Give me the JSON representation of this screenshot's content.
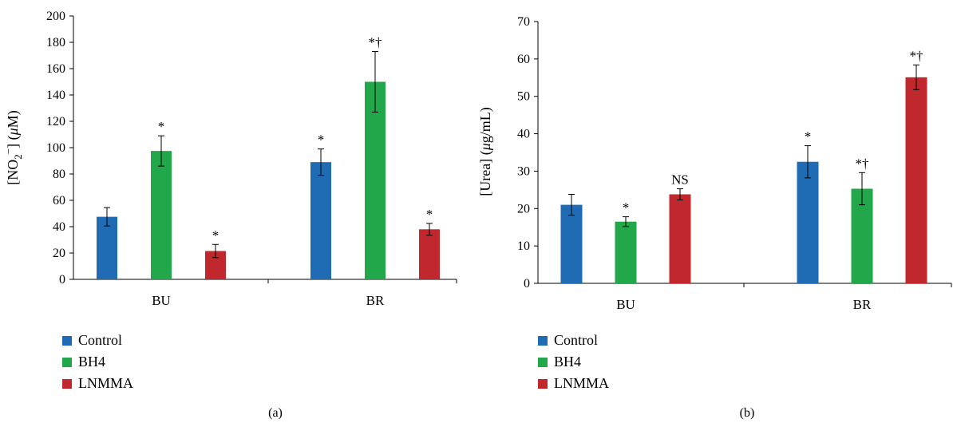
{
  "colors": {
    "Control": "#1f6cb4",
    "BH4": "#22a84a",
    "LNMMA": "#c0282d"
  },
  "chart_data": [
    {
      "panel_label": "(a)",
      "type": "bar",
      "categories": [
        "BU",
        "BR"
      ],
      "ylabel_parts": [
        "[NO",
        "2",
        "−",
        "] (",
        "μ",
        "M)"
      ],
      "ylim": [
        0,
        200
      ],
      "yticks": [
        0,
        20,
        40,
        60,
        80,
        100,
        120,
        140,
        160,
        180,
        200
      ],
      "legend": [
        "Control",
        "BH4",
        "LNMMA"
      ],
      "legend_position": "bottom-left",
      "series": [
        {
          "name": "Control",
          "values": [
            47.5,
            89
          ],
          "errors": [
            7,
            10
          ],
          "annotations": [
            "",
            "*"
          ]
        },
        {
          "name": "BH4",
          "values": [
            97.5,
            150
          ],
          "errors": [
            11.5,
            23
          ],
          "annotations": [
            "*",
            "*†"
          ]
        },
        {
          "name": "LNMMA",
          "values": [
            21.5,
            38
          ],
          "errors": [
            5,
            4.5
          ],
          "annotations": [
            "*",
            "*"
          ]
        }
      ]
    },
    {
      "panel_label": "(b)",
      "type": "bar",
      "categories": [
        "BU",
        "BR"
      ],
      "ylabel_parts": [
        "[Urea] (",
        "μ",
        "g/mL)"
      ],
      "ylim": [
        0,
        70
      ],
      "yticks": [
        0,
        10,
        20,
        30,
        40,
        50,
        60,
        70
      ],
      "legend": [
        "Control",
        "BH4",
        "LNMMA"
      ],
      "legend_position": "bottom-left",
      "series": [
        {
          "name": "Control",
          "values": [
            21,
            32.5
          ],
          "errors": [
            2.8,
            4.3
          ],
          "annotations": [
            "",
            "*"
          ]
        },
        {
          "name": "BH4",
          "values": [
            16.5,
            25.3
          ],
          "errors": [
            1.3,
            4.3
          ],
          "annotations": [
            "*",
            "*†"
          ]
        },
        {
          "name": "LNMMA",
          "values": [
            23.8,
            55.1
          ],
          "errors": [
            1.5,
            3.3
          ],
          "annotations": [
            "NS",
            "*†"
          ]
        }
      ]
    }
  ]
}
